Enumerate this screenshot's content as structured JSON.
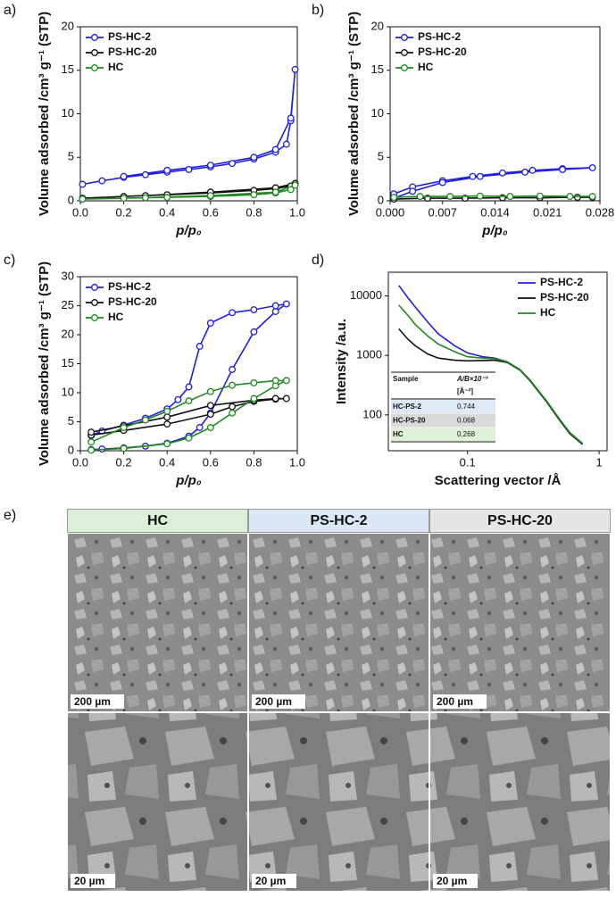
{
  "chart_data": [
    {
      "type": "line",
      "panel": "a)",
      "markers": true,
      "legend": "upper left",
      "xlabel": "p/p₀",
      "ylabel": "Volume adsorbed /cm³ g⁻¹ (STP)",
      "xlim": [
        0,
        1
      ],
      "ylim": [
        0,
        20
      ],
      "xticks": [
        {
          "value": 0,
          "label": "0.0"
        },
        0.2,
        0.4,
        0.6,
        0.8,
        {
          "value": 1,
          "label": "1.0"
        }
      ],
      "yticks": [
        0,
        5,
        10,
        15,
        20
      ],
      "series": [
        {
          "name": "PS-HC-2",
          "color": "#1f1fe0",
          "x": [
            0.01,
            0.1,
            0.2,
            0.3,
            0.4,
            0.5,
            0.6,
            0.7,
            0.8,
            0.9,
            0.95,
            0.97,
            0.99,
            0.97,
            0.9,
            0.8,
            0.6,
            0.4,
            0.2
          ],
          "values": [
            1.9,
            2.3,
            2.7,
            3.0,
            3.3,
            3.6,
            3.9,
            4.3,
            4.8,
            5.6,
            6.5,
            9.2,
            15.1,
            9.5,
            5.9,
            5.0,
            4.1,
            3.5,
            2.8
          ]
        },
        {
          "name": "PS-HC-20",
          "color": "#111111",
          "x": [
            0.01,
            0.2,
            0.4,
            0.6,
            0.8,
            0.9,
            0.97,
            0.99,
            0.9,
            0.6,
            0.3
          ],
          "values": [
            0.3,
            0.5,
            0.7,
            0.9,
            1.2,
            1.4,
            1.7,
            2.0,
            1.5,
            1.0,
            0.6
          ]
        },
        {
          "name": "HC",
          "color": "#1e8a1e",
          "x": [
            0.01,
            0.2,
            0.4,
            0.6,
            0.8,
            0.9,
            0.97,
            0.99,
            0.9,
            0.6,
            0.3
          ],
          "values": [
            0.2,
            0.3,
            0.4,
            0.5,
            0.7,
            0.9,
            1.3,
            1.8,
            1.0,
            0.6,
            0.35
          ]
        }
      ]
    },
    {
      "type": "line",
      "panel": "b)",
      "markers": true,
      "legend": "upper left",
      "xlabel": "p/p₀",
      "ylabel": "Volume adsorbed /cm³ g⁻¹ (STP)",
      "xlim": [
        0,
        0.028
      ],
      "ylim": [
        0,
        20
      ],
      "xticks": [
        {
          "value": 0,
          "label": "0.000"
        },
        0.007,
        0.014,
        0.021,
        0.028
      ],
      "yticks": [
        0,
        5,
        10,
        15,
        20
      ],
      "series": [
        {
          "name": "PS-HC-2",
          "color": "#1f1fe0",
          "x": [
            0.0005,
            0.003,
            0.007,
            0.011,
            0.015,
            0.019,
            0.023,
            0.027,
            0.023,
            0.018,
            0.012,
            0.007,
            0.003,
            0.0005
          ],
          "values": [
            0.8,
            1.6,
            2.3,
            2.8,
            3.2,
            3.5,
            3.7,
            3.8,
            3.6,
            3.3,
            2.8,
            2.1,
            1.1,
            0.3
          ]
        },
        {
          "name": "PS-HC-20",
          "color": "#111111",
          "x": [
            0.0005,
            0.005,
            0.01,
            0.015,
            0.02,
            0.025,
            0.027
          ],
          "values": [
            0.2,
            0.3,
            0.3,
            0.35,
            0.35,
            0.4,
            0.4
          ]
        },
        {
          "name": "HC",
          "color": "#1e8a1e",
          "x": [
            0.0005,
            0.004,
            0.008,
            0.012,
            0.016,
            0.02,
            0.024,
            0.027
          ],
          "values": [
            0.4,
            0.5,
            0.5,
            0.55,
            0.5,
            0.55,
            0.5,
            0.5
          ]
        }
      ]
    },
    {
      "type": "line",
      "panel": "c)",
      "markers": true,
      "legend": "upper left",
      "xlabel": "p/p₀",
      "ylabel": "Volume adsorbed /cm³ g⁻¹ (STP)",
      "xlim": [
        0,
        1
      ],
      "ylim": [
        0,
        30
      ],
      "xticks": [
        {
          "value": 0,
          "label": "0.0"
        },
        0.2,
        0.4,
        0.6,
        0.8,
        {
          "value": 1,
          "label": "1.0"
        }
      ],
      "yticks": [
        0,
        5,
        10,
        15,
        20,
        25,
        30
      ],
      "series": [
        {
          "name": "PS-HC-2",
          "color": "#1f1fe0",
          "x": [
            0.05,
            0.1,
            0.2,
            0.3,
            0.4,
            0.5,
            0.55,
            0.6,
            0.7,
            0.8,
            0.9,
            0.95,
            0.9,
            0.8,
            0.7,
            0.6,
            0.55,
            0.5,
            0.45,
            0.4,
            0.3,
            0.2,
            0.1,
            0.05
          ],
          "values": [
            0.2,
            0.3,
            0.5,
            0.8,
            1.3,
            2.5,
            4,
            6.5,
            14,
            20.5,
            24,
            25.3,
            25,
            24.3,
            23.8,
            22,
            18,
            11,
            8.8,
            7.2,
            5.6,
            4.4,
            3.4,
            2.6
          ]
        },
        {
          "name": "PS-HC-20",
          "color": "#111111",
          "x": [
            0.05,
            0.2,
            0.4,
            0.6,
            0.7,
            0.8,
            0.9,
            0.95,
            0.9,
            0.8,
            0.6,
            0.4,
            0.2,
            0.05
          ],
          "values": [
            2.7,
            3.5,
            4.6,
            6.3,
            7.6,
            8.5,
            8.9,
            9.0,
            9.0,
            8.7,
            7.8,
            5.8,
            4.3,
            3.2
          ]
        },
        {
          "name": "HC",
          "color": "#1e8a1e",
          "x": [
            0.05,
            0.2,
            0.4,
            0.5,
            0.6,
            0.7,
            0.8,
            0.9,
            0.95,
            0.9,
            0.8,
            0.7,
            0.6,
            0.5,
            0.4,
            0.3,
            0.2,
            0.05
          ],
          "values": [
            0.1,
            0.4,
            1.2,
            2.2,
            4,
            6.5,
            9,
            11.2,
            12.1,
            12.1,
            11.7,
            11.3,
            10.2,
            8.6,
            6.8,
            5.3,
            4,
            1.5
          ]
        }
      ]
    },
    {
      "type": "line",
      "panel": "d)",
      "markers": false,
      "legend": "upper right",
      "log_x": true,
      "log_y": true,
      "xlabel": "Scattering vector /Å",
      "ylabel": "Intensity /a.u.",
      "xlim": [
        0.025,
        1.15
      ],
      "ylim": [
        25,
        25000
      ],
      "xticks": [
        0.1,
        1
      ],
      "yticks": [
        100,
        1000,
        10000
      ],
      "series": [
        {
          "name": "PS-HC-2",
          "color": "#1f1fe0",
          "x": [
            0.03,
            0.035,
            0.04,
            0.05,
            0.06,
            0.08,
            0.1,
            0.13,
            0.16,
            0.2,
            0.25,
            0.3,
            0.4,
            0.5,
            0.6,
            0.75
          ],
          "values": [
            15000,
            9500,
            6500,
            3600,
            2300,
            1450,
            1100,
            950,
            900,
            780,
            580,
            380,
            170,
            85,
            50,
            33
          ]
        },
        {
          "name": "PS-HC-20",
          "color": "#111111",
          "x": [
            0.03,
            0.035,
            0.04,
            0.05,
            0.06,
            0.08,
            0.1,
            0.13,
            0.16,
            0.2,
            0.25,
            0.3,
            0.4,
            0.5,
            0.6,
            0.75
          ],
          "values": [
            2800,
            1900,
            1450,
            1050,
            900,
            830,
            810,
            820,
            830,
            760,
            570,
            370,
            165,
            82,
            48,
            32
          ]
        },
        {
          "name": "HC",
          "color": "#1e8a1e",
          "x": [
            0.03,
            0.035,
            0.04,
            0.05,
            0.06,
            0.08,
            0.1,
            0.13,
            0.16,
            0.2,
            0.25,
            0.3,
            0.4,
            0.5,
            0.6,
            0.75
          ],
          "values": [
            7000,
            4800,
            3300,
            2100,
            1550,
            1150,
            950,
            900,
            880,
            780,
            580,
            380,
            170,
            85,
            50,
            33
          ]
        }
      ],
      "inset_table": {
        "header": [
          "Sample",
          "A/B×10⁻³"
        ],
        "unit": "[Å⁻²]",
        "rows": [
          [
            "HC-PS-2",
            0.744
          ],
          [
            "HC-PS-20",
            0.068
          ],
          [
            "HC",
            0.268
          ]
        ],
        "row_colors": [
          "#dfe9f5",
          "#d9d9d9",
          "#dff0d8"
        ]
      }
    }
  ],
  "panel_e": {
    "label": "e)",
    "columns": [
      "HC",
      "PS-HC-2",
      "PS-HC-20"
    ],
    "column_colors": [
      "#dcefd8",
      "#dbe7f4",
      "#e6e6e6"
    ],
    "scale_bars": [
      [
        "200 µm",
        "200 µm",
        "200 µm"
      ],
      [
        "20 µm",
        "20 µm",
        "20 µm"
      ]
    ]
  }
}
